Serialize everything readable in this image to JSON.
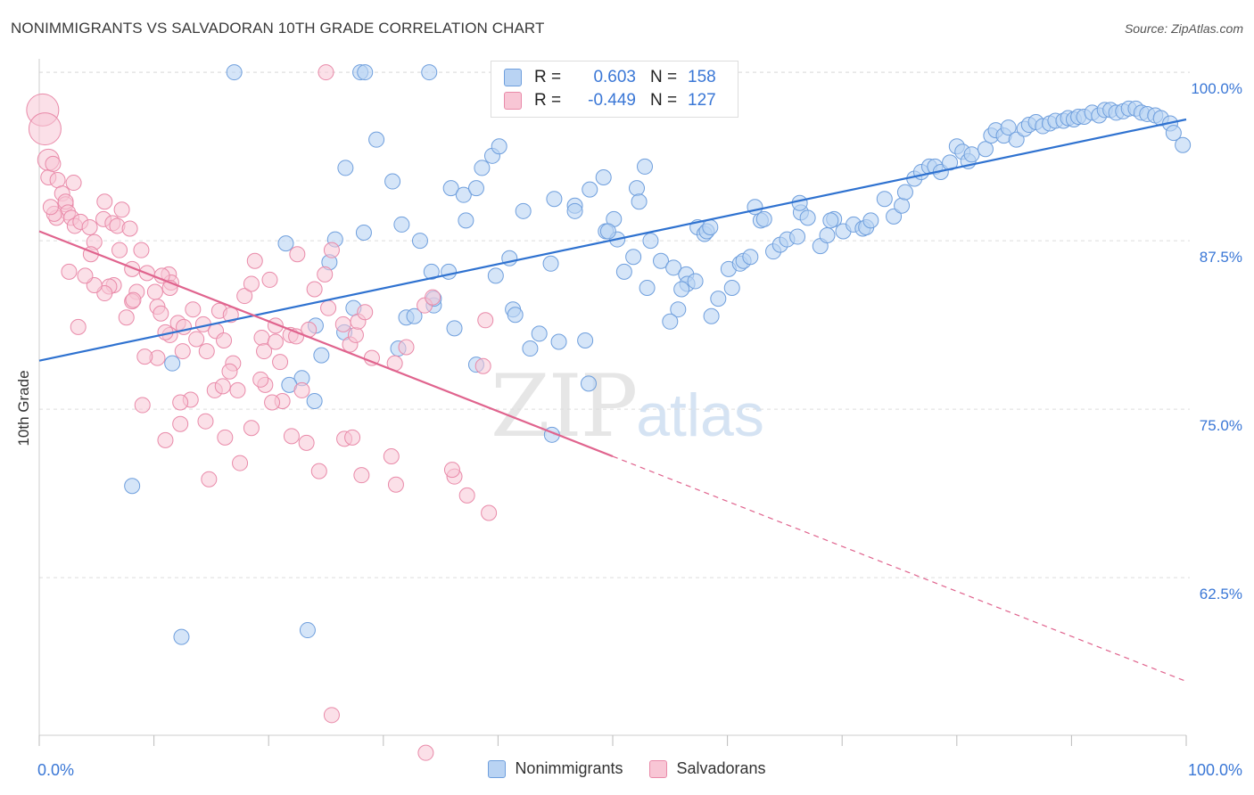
{
  "header": {
    "title": "NONIMMIGRANTS VS SALVADORAN 10TH GRADE CORRELATION CHART",
    "source": "Source: ZipAtlas.com"
  },
  "watermark": {
    "zip": "ZIP",
    "atlas": "atlas"
  },
  "legend": {
    "rows": [
      {
        "r_label": "R =",
        "r_value": "0.603",
        "n_label": "N =",
        "n_value": "158"
      },
      {
        "r_label": "R =",
        "r_value": "-0.449",
        "n_label": "N =",
        "n_value": "127"
      }
    ]
  },
  "bottom_legend": {
    "items": [
      {
        "label": "Nonimmigrants"
      },
      {
        "label": "Salvadorans"
      }
    ]
  },
  "colors": {
    "blue_fill": "#b9d3f3",
    "blue_stroke": "#6f9fdd",
    "blue_line": "#2f72d0",
    "pink_fill": "#f8c6d5",
    "pink_stroke": "#e98aa9",
    "pink_line": "#e0648e",
    "tick_label": "#3a77d6",
    "grid": "#dddddd"
  },
  "chart_data": {
    "type": "scatter",
    "title": "NONIMMIGRANTS VS SALVADORAN 10TH GRADE CORRELATION CHART",
    "xlabel": "",
    "ylabel": "10th Grade",
    "x_tick_labels": [
      "0.0%",
      "100.0%"
    ],
    "y_tick_labels": [
      "100.0%",
      "87.5%",
      "75.0%",
      "62.5%"
    ],
    "y_ticks": [
      100.0,
      87.5,
      75.0,
      62.5
    ],
    "xlim": [
      0,
      100
    ],
    "ylim": [
      50.8,
      100.6
    ],
    "grid": true,
    "legend_position": "top-center",
    "series": [
      {
        "name": "Nonimmigrants",
        "r": 0.603,
        "n": 158,
        "trend": {
          "x": [
            0,
            100
          ],
          "y": [
            78.6,
            96.5
          ]
        },
        "points": [
          [
            17.0,
            100
          ],
          [
            28.0,
            100
          ],
          [
            28.4,
            100
          ],
          [
            34.0,
            100
          ],
          [
            29.4,
            95.0
          ],
          [
            26.7,
            92.9
          ],
          [
            30.8,
            91.9
          ],
          [
            35.9,
            91.4
          ],
          [
            37.0,
            90.9
          ],
          [
            38.1,
            91.4
          ],
          [
            38.6,
            92.9
          ],
          [
            39.5,
            93.8
          ],
          [
            40.1,
            94.5
          ],
          [
            37.2,
            89.0
          ],
          [
            31.6,
            88.7
          ],
          [
            28.3,
            88.1
          ],
          [
            25.8,
            87.6
          ],
          [
            21.5,
            87.3
          ],
          [
            25.3,
            85.9
          ],
          [
            33.2,
            87.5
          ],
          [
            34.2,
            85.2
          ],
          [
            35.7,
            85.2
          ],
          [
            34.4,
            82.7
          ],
          [
            34.4,
            83.2
          ],
          [
            32.0,
            81.8
          ],
          [
            41.0,
            86.2
          ],
          [
            39.8,
            84.9
          ],
          [
            44.6,
            85.8
          ],
          [
            42.2,
            89.7
          ],
          [
            44.9,
            90.6
          ],
          [
            46.7,
            90.1
          ],
          [
            46.7,
            89.7
          ],
          [
            48.0,
            91.3
          ],
          [
            49.4,
            88.2
          ],
          [
            50.1,
            89.1
          ],
          [
            50.4,
            87.6
          ],
          [
            52.1,
            91.4
          ],
          [
            52.3,
            90.4
          ],
          [
            52.8,
            93.0
          ],
          [
            49.2,
            92.2
          ],
          [
            49.6,
            88.2
          ],
          [
            51.8,
            86.3
          ],
          [
            51.0,
            85.2
          ],
          [
            53.0,
            84.0
          ],
          [
            53.3,
            87.5
          ],
          [
            54.2,
            86.0
          ],
          [
            55.3,
            85.5
          ],
          [
            55.7,
            82.4
          ],
          [
            56.4,
            85.0
          ],
          [
            56.5,
            84.3
          ],
          [
            57.2,
            84.5
          ],
          [
            57.4,
            88.5
          ],
          [
            58.0,
            88.0
          ],
          [
            58.2,
            88.2
          ],
          [
            58.5,
            88.5
          ],
          [
            59.2,
            83.2
          ],
          [
            60.1,
            85.4
          ],
          [
            60.4,
            84.0
          ],
          [
            61.1,
            85.8
          ],
          [
            61.4,
            86.0
          ],
          [
            62.0,
            86.3
          ],
          [
            62.9,
            89.0
          ],
          [
            62.4,
            90.0
          ],
          [
            63.2,
            89.1
          ],
          [
            64.0,
            86.7
          ],
          [
            64.6,
            87.2
          ],
          [
            65.2,
            87.6
          ],
          [
            66.1,
            87.8
          ],
          [
            66.4,
            89.6
          ],
          [
            67.0,
            89.2
          ],
          [
            68.1,
            87.1
          ],
          [
            68.7,
            87.9
          ],
          [
            69.3,
            89.1
          ],
          [
            69.0,
            89.0
          ],
          [
            70.1,
            88.2
          ],
          [
            71.0,
            88.7
          ],
          [
            71.8,
            88.4
          ],
          [
            72.1,
            88.5
          ],
          [
            72.5,
            89.0
          ],
          [
            73.7,
            90.6
          ],
          [
            74.5,
            89.3
          ],
          [
            75.2,
            90.1
          ],
          [
            75.5,
            91.1
          ],
          [
            76.3,
            92.1
          ],
          [
            76.9,
            92.6
          ],
          [
            77.6,
            93.0
          ],
          [
            78.1,
            93.0
          ],
          [
            78.6,
            92.6
          ],
          [
            79.4,
            93.3
          ],
          [
            80.0,
            94.5
          ],
          [
            80.5,
            94.1
          ],
          [
            81.0,
            93.4
          ],
          [
            81.3,
            93.9
          ],
          [
            82.5,
            94.3
          ],
          [
            83.0,
            95.3
          ],
          [
            83.4,
            95.7
          ],
          [
            84.1,
            95.3
          ],
          [
            84.5,
            95.9
          ],
          [
            85.2,
            95.0
          ],
          [
            85.9,
            95.8
          ],
          [
            86.3,
            96.1
          ],
          [
            86.9,
            96.3
          ],
          [
            87.5,
            96.0
          ],
          [
            88.1,
            96.2
          ],
          [
            88.6,
            96.4
          ],
          [
            89.3,
            96.4
          ],
          [
            89.7,
            96.6
          ],
          [
            90.2,
            96.5
          ],
          [
            90.6,
            96.7
          ],
          [
            91.1,
            96.7
          ],
          [
            91.8,
            97.0
          ],
          [
            92.4,
            96.8
          ],
          [
            92.9,
            97.2
          ],
          [
            93.4,
            97.2
          ],
          [
            93.9,
            97.0
          ],
          [
            94.5,
            97.1
          ],
          [
            95.0,
            97.3
          ],
          [
            95.6,
            97.3
          ],
          [
            96.1,
            97.0
          ],
          [
            96.6,
            96.9
          ],
          [
            97.3,
            96.8
          ],
          [
            97.8,
            96.6
          ],
          [
            98.6,
            96.2
          ],
          [
            98.9,
            95.5
          ],
          [
            99.7,
            94.6
          ],
          [
            27.4,
            82.5
          ],
          [
            24.1,
            81.2
          ],
          [
            26.6,
            80.7
          ],
          [
            32.7,
            81.9
          ],
          [
            36.2,
            81.0
          ],
          [
            41.3,
            82.4
          ],
          [
            41.5,
            82.0
          ],
          [
            43.6,
            80.6
          ],
          [
            45.3,
            80.0
          ],
          [
            38.1,
            78.3
          ],
          [
            31.3,
            79.5
          ],
          [
            24.6,
            79.0
          ],
          [
            22.9,
            77.3
          ],
          [
            21.8,
            76.8
          ],
          [
            24.0,
            75.6
          ],
          [
            11.6,
            78.4
          ],
          [
            8.1,
            69.3
          ],
          [
            12.4,
            58.1
          ],
          [
            23.4,
            58.6
          ],
          [
            47.6,
            80.1
          ],
          [
            42.8,
            79.5
          ],
          [
            47.9,
            76.9
          ],
          [
            44.7,
            73.1
          ],
          [
            55.0,
            81.5
          ],
          [
            58.6,
            81.9
          ],
          [
            66.3,
            90.3
          ],
          [
            56.0,
            83.9
          ]
        ]
      },
      {
        "name": "Salvadorans",
        "r": -0.449,
        "n": 127,
        "trend": {
          "x": [
            0,
            50
          ],
          "y": [
            88.2,
            71.5
          ]
        },
        "trend_dashed": {
          "x": [
            50,
            100
          ],
          "y": [
            71.5,
            54.8
          ]
        },
        "points": [
          [
            25.0,
            100
          ],
          [
            43.0,
            99.0
          ],
          [
            0.3,
            97.2
          ],
          [
            0.5,
            95.8
          ],
          [
            0.8,
            93.5
          ],
          [
            0.8,
            92.2
          ],
          [
            1.2,
            93.2
          ],
          [
            1.6,
            92.0
          ],
          [
            2.0,
            91.0
          ],
          [
            2.3,
            90.2
          ],
          [
            2.3,
            90.4
          ],
          [
            2.5,
            89.6
          ],
          [
            2.8,
            89.2
          ],
          [
            3.1,
            88.6
          ],
          [
            3.6,
            88.9
          ],
          [
            4.4,
            88.5
          ],
          [
            4.8,
            87.4
          ],
          [
            4.5,
            86.5
          ],
          [
            5.6,
            89.1
          ],
          [
            5.7,
            90.4
          ],
          [
            6.4,
            88.8
          ],
          [
            6.8,
            88.6
          ],
          [
            7.0,
            86.8
          ],
          [
            7.2,
            89.8
          ],
          [
            7.9,
            88.4
          ],
          [
            8.1,
            85.4
          ],
          [
            8.5,
            83.7
          ],
          [
            8.9,
            86.8
          ],
          [
            9.4,
            85.1
          ],
          [
            10.1,
            83.7
          ],
          [
            10.3,
            82.6
          ],
          [
            10.6,
            82.1
          ],
          [
            11.3,
            85.0
          ],
          [
            11.5,
            84.4
          ],
          [
            12.1,
            81.4
          ],
          [
            12.6,
            81.1
          ],
          [
            13.4,
            82.4
          ],
          [
            13.7,
            80.2
          ],
          [
            14.3,
            81.3
          ],
          [
            14.6,
            79.3
          ],
          [
            15.4,
            80.8
          ],
          [
            15.7,
            82.3
          ],
          [
            16.1,
            80.1
          ],
          [
            16.7,
            82.0
          ],
          [
            16.9,
            78.4
          ],
          [
            17.3,
            76.4
          ],
          [
            17.9,
            83.4
          ],
          [
            18.5,
            84.3
          ],
          [
            18.8,
            86.0
          ],
          [
            19.4,
            80.3
          ],
          [
            19.6,
            79.3
          ],
          [
            20.1,
            84.6
          ],
          [
            20.6,
            81.2
          ],
          [
            20.6,
            80.0
          ],
          [
            21.0,
            78.5
          ],
          [
            21.2,
            75.6
          ],
          [
            21.9,
            80.5
          ],
          [
            22.4,
            80.4
          ],
          [
            23.5,
            80.9
          ],
          [
            24.0,
            83.9
          ],
          [
            24.9,
            85.0
          ],
          [
            25.2,
            82.5
          ],
          [
            25.5,
            86.8
          ],
          [
            26.5,
            81.3
          ],
          [
            27.1,
            79.8
          ],
          [
            27.6,
            80.5
          ],
          [
            27.8,
            81.5
          ],
          [
            28.4,
            82.2
          ],
          [
            29.0,
            78.8
          ],
          [
            31.0,
            78.4
          ],
          [
            32.0,
            79.6
          ],
          [
            33.6,
            82.7
          ],
          [
            34.3,
            83.3
          ],
          [
            36.2,
            70.0
          ],
          [
            38.7,
            78.2
          ],
          [
            38.9,
            81.6
          ],
          [
            11.4,
            80.5
          ],
          [
            10.7,
            84.9
          ],
          [
            11.0,
            80.7
          ],
          [
            8.1,
            83.0
          ],
          [
            7.6,
            81.8
          ],
          [
            6.5,
            84.2
          ],
          [
            6.1,
            84.1
          ],
          [
            5.7,
            83.6
          ],
          [
            4.8,
            84.2
          ],
          [
            4.0,
            84.9
          ],
          [
            3.4,
            81.1
          ],
          [
            2.6,
            85.2
          ],
          [
            3.0,
            91.8
          ],
          [
            1.5,
            89.2
          ],
          [
            1.3,
            89.5
          ],
          [
            1.0,
            90.0
          ],
          [
            13.2,
            75.7
          ],
          [
            12.3,
            73.9
          ],
          [
            10.3,
            78.8
          ],
          [
            9.2,
            78.9
          ],
          [
            15.3,
            76.4
          ],
          [
            14.5,
            74.1
          ],
          [
            16.2,
            72.9
          ],
          [
            12.3,
            75.5
          ],
          [
            11.0,
            72.7
          ],
          [
            17.5,
            71.0
          ],
          [
            14.8,
            69.8
          ],
          [
            9.0,
            75.3
          ],
          [
            22.0,
            73.0
          ],
          [
            23.3,
            72.5
          ],
          [
            24.4,
            70.4
          ],
          [
            26.6,
            72.8
          ],
          [
            27.3,
            72.9
          ],
          [
            18.5,
            73.6
          ],
          [
            19.7,
            76.8
          ],
          [
            20.3,
            75.5
          ],
          [
            22.9,
            76.4
          ],
          [
            28.1,
            70.1
          ],
          [
            30.7,
            71.5
          ],
          [
            31.1,
            69.4
          ],
          [
            36.0,
            70.5
          ],
          [
            37.3,
            68.6
          ],
          [
            39.2,
            67.3
          ],
          [
            16.0,
            76.7
          ],
          [
            16.6,
            77.8
          ],
          [
            19.3,
            77.2
          ],
          [
            11.4,
            84.0
          ],
          [
            22.5,
            86.5
          ],
          [
            25.5,
            52.3
          ],
          [
            33.7,
            49.5
          ],
          [
            12.5,
            79.3
          ],
          [
            8.2,
            83.1
          ]
        ]
      }
    ]
  }
}
